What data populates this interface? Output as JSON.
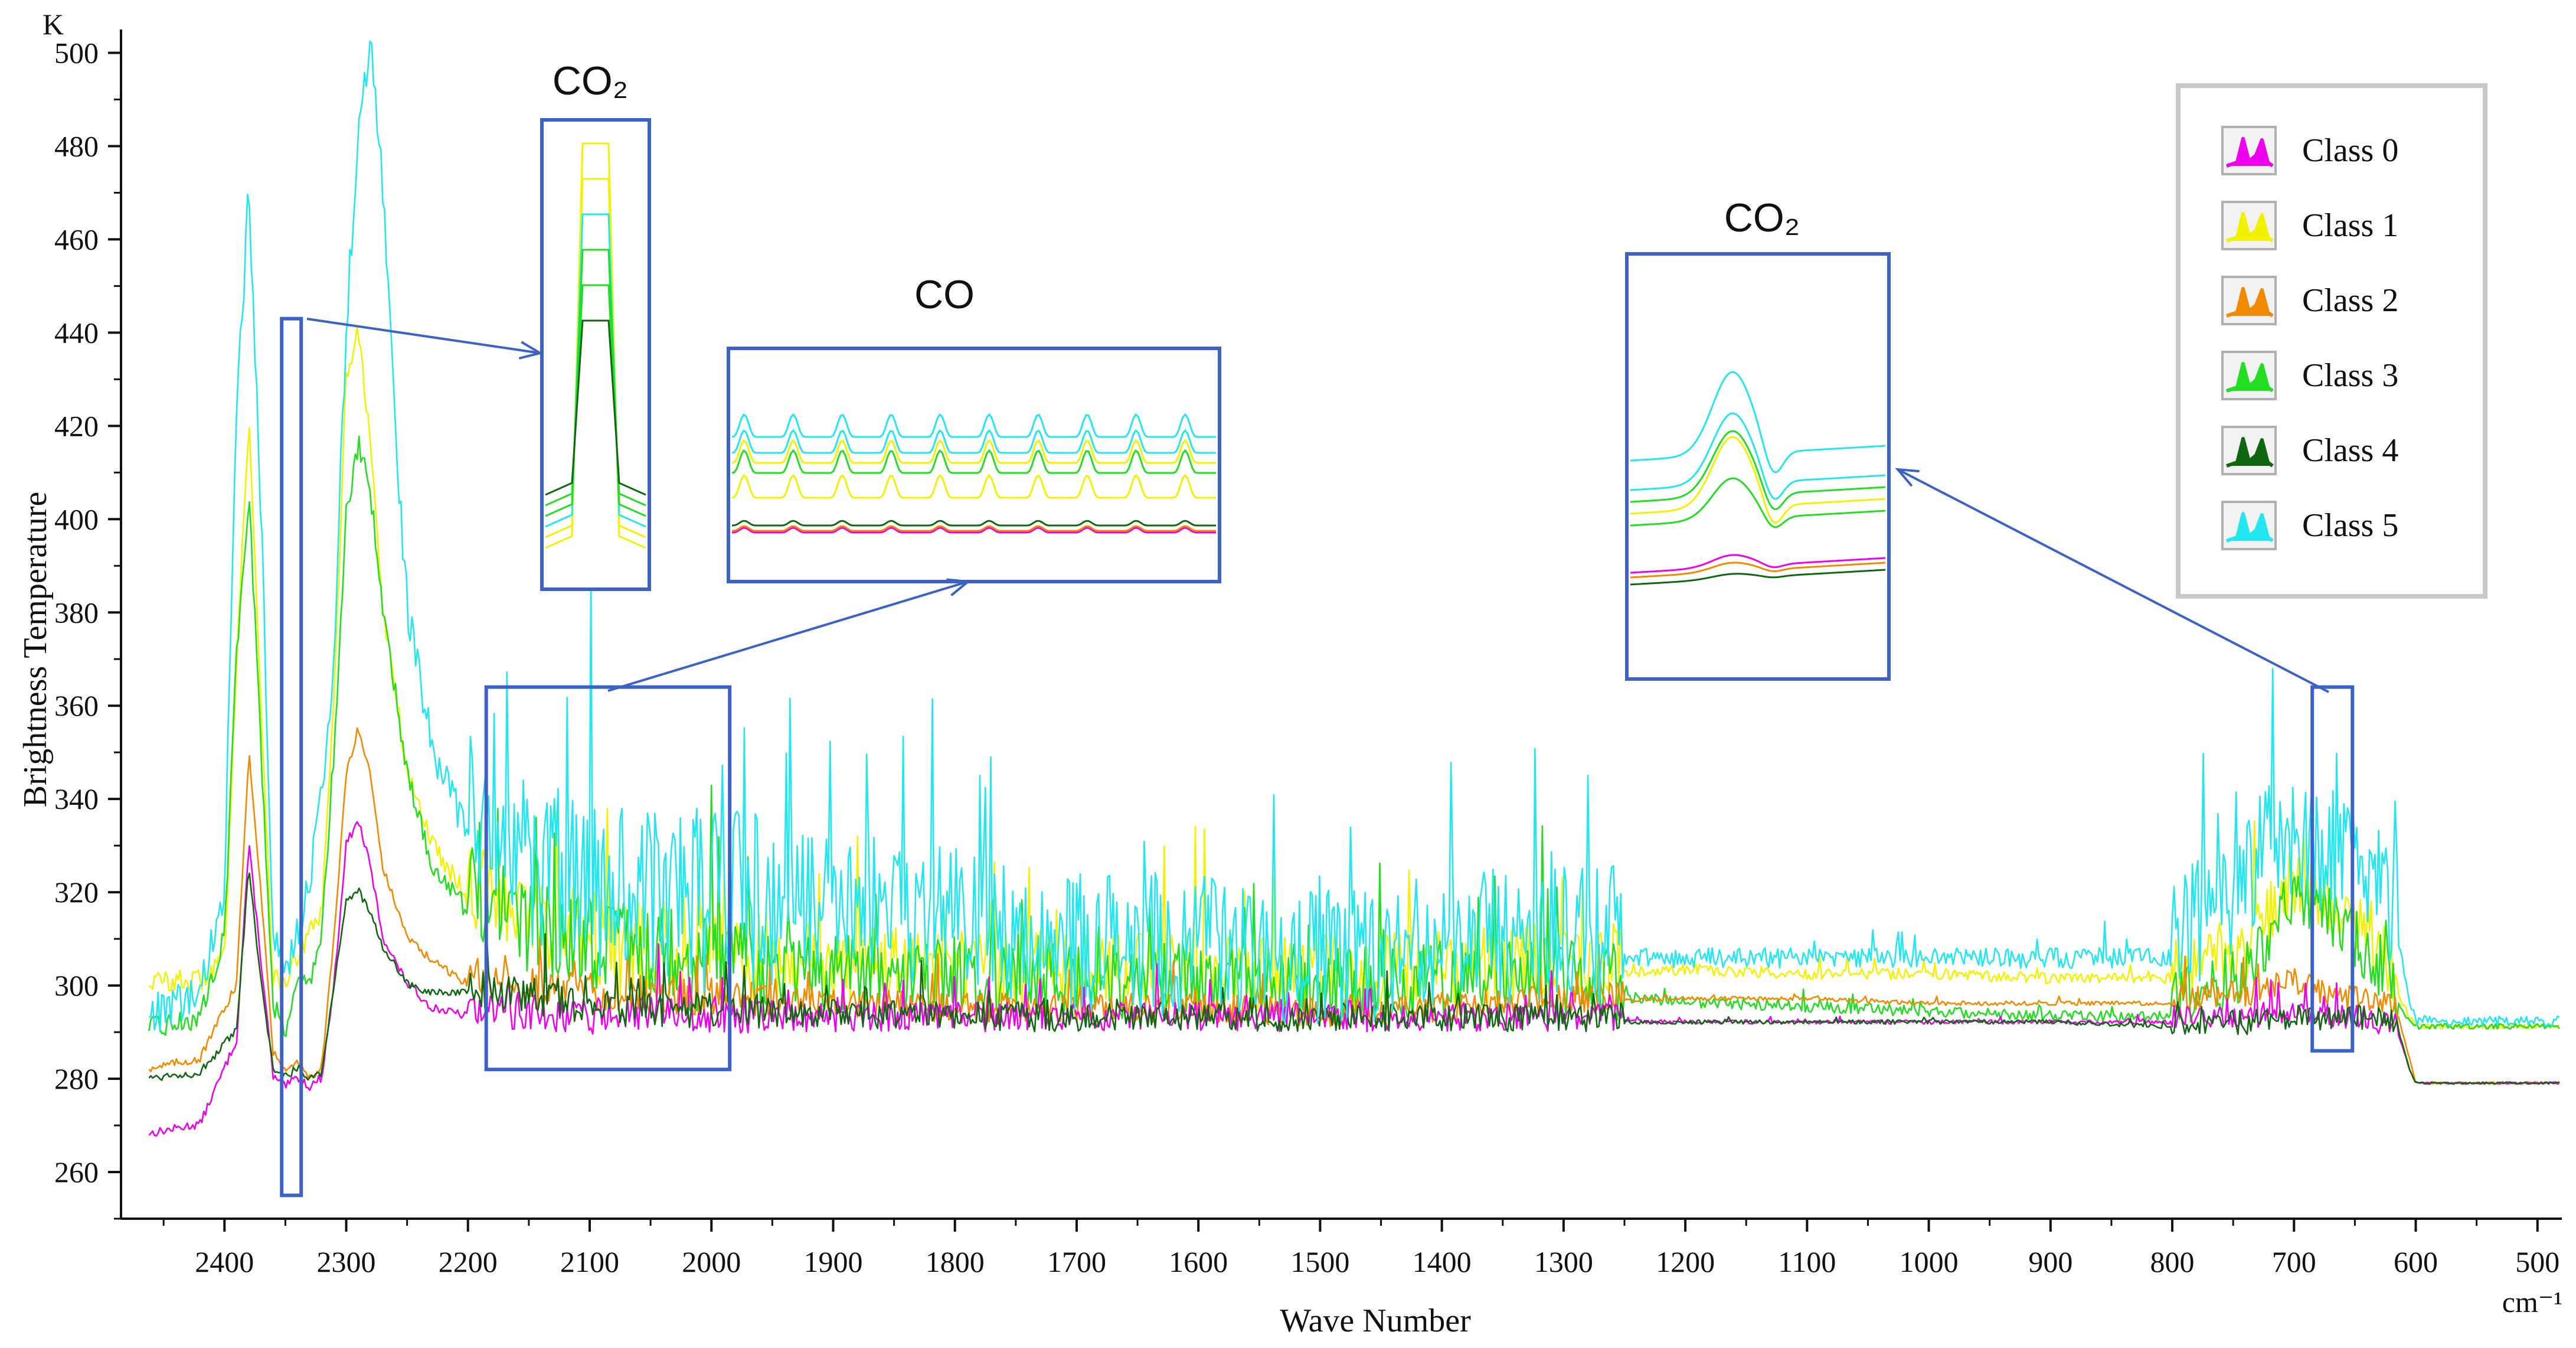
{
  "chart_data": {
    "type": "line",
    "title": "",
    "xlabel": "Wave Number",
    "ylabel": "Brightness Temperature",
    "x_unit": "cm⁻¹",
    "y_unit": "K",
    "xlim": [
      2485,
      480
    ],
    "ylim": [
      250,
      505
    ],
    "x_ticks": [
      2400,
      2300,
      2200,
      2100,
      2000,
      1900,
      1800,
      1700,
      1600,
      1500,
      1400,
      1300,
      1200,
      1100,
      1000,
      900,
      800,
      700,
      600,
      500
    ],
    "y_ticks": [
      260,
      280,
      300,
      320,
      340,
      360,
      380,
      400,
      420,
      440,
      460,
      480,
      500
    ],
    "legend_position": "top-right",
    "series": [
      {
        "name": "Class 0",
        "color": "#ee00ee",
        "x": [
          2460,
          2420,
          2390,
          2380,
          2370,
          2360,
          2350,
          2340,
          2330,
          2320,
          2310,
          2300,
          2290,
          2280,
          2270,
          2250,
          2230,
          2200,
          2150,
          2100,
          2000,
          1900,
          1800,
          1700,
          1600,
          1500,
          1400,
          1300,
          1200,
          1100,
          1000,
          900,
          800,
          740,
          700,
          670,
          640,
          615,
          605,
          600,
          560,
          500,
          482
        ],
        "y": [
          268,
          270,
          288,
          330,
          305,
          280,
          278,
          280,
          278,
          280,
          300,
          330,
          335,
          325,
          310,
          300,
          295,
          293,
          293,
          292,
          292,
          292,
          292,
          292,
          292,
          292,
          292,
          292,
          292,
          292,
          292,
          292,
          292,
          292,
          294,
          292,
          292,
          290,
          282,
          279,
          279,
          279,
          279
        ]
      },
      {
        "name": "Class 1",
        "color": "#f2f200",
        "x": [
          2460,
          2420,
          2400,
          2390,
          2380,
          2370,
          2360,
          2350,
          2340,
          2320,
          2310,
          2300,
          2290,
          2280,
          2270,
          2250,
          2230,
          2200,
          2150,
          2100,
          2000,
          1900,
          1800,
          1700,
          1600,
          1500,
          1400,
          1300,
          1200,
          1100,
          1000,
          900,
          800,
          740,
          700,
          670,
          640,
          615,
          605,
          600,
          560,
          500,
          482
        ],
        "y": [
          300,
          300,
          305,
          370,
          420,
          360,
          300,
          300,
          305,
          315,
          360,
          430,
          440,
          415,
          380,
          345,
          330,
          318,
          312,
          305,
          302,
          302,
          301,
          300,
          300,
          299,
          300,
          302,
          303,
          302,
          302,
          301,
          301,
          305,
          320,
          315,
          310,
          298,
          293,
          291,
          291,
          291,
          291
        ]
      },
      {
        "name": "Class 2",
        "color": "#f08a00",
        "x": [
          2460,
          2420,
          2390,
          2380,
          2370,
          2360,
          2350,
          2340,
          2330,
          2320,
          2310,
          2300,
          2290,
          2280,
          2270,
          2250,
          2230,
          2200,
          2150,
          2100,
          2000,
          1900,
          1800,
          1700,
          1600,
          1500,
          1400,
          1300,
          1200,
          1100,
          1000,
          900,
          800,
          740,
          700,
          670,
          640,
          615,
          605,
          600,
          560,
          500,
          482
        ],
        "y": [
          282,
          284,
          300,
          350,
          320,
          285,
          282,
          283,
          280,
          282,
          310,
          345,
          355,
          345,
          325,
          310,
          305,
          300,
          298,
          297,
          296,
          295,
          294,
          294,
          294,
          293,
          294,
          296,
          297,
          297,
          296,
          296,
          296,
          297,
          300,
          297,
          296,
          294,
          284,
          279,
          279,
          279,
          279
        ]
      },
      {
        "name": "Class 3",
        "color": "#22dd22",
        "x": [
          2460,
          2420,
          2400,
          2390,
          2380,
          2370,
          2360,
          2350,
          2340,
          2330,
          2320,
          2310,
          2300,
          2290,
          2280,
          2270,
          2250,
          2230,
          2200,
          2150,
          2100,
          2000,
          1900,
          1800,
          1700,
          1600,
          1500,
          1400,
          1300,
          1200,
          1100,
          1000,
          900,
          800,
          740,
          700,
          670,
          640,
          615,
          605,
          600,
          560,
          500,
          482
        ],
        "y": [
          290,
          292,
          310,
          370,
          405,
          350,
          295,
          290,
          300,
          300,
          310,
          350,
          400,
          415,
          405,
          380,
          345,
          325,
          315,
          308,
          304,
          300,
          299,
          299,
          298,
          298,
          297,
          298,
          298,
          296,
          295,
          294,
          293,
          293,
          300,
          318,
          312,
          305,
          296,
          292,
          291,
          291,
          291,
          291
        ]
      },
      {
        "name": "Class 4",
        "color": "#116611",
        "x": [
          2460,
          2420,
          2390,
          2380,
          2370,
          2360,
          2350,
          2340,
          2330,
          2320,
          2310,
          2300,
          2290,
          2280,
          2270,
          2250,
          2230,
          2200,
          2150,
          2100,
          2000,
          1900,
          1800,
          1700,
          1600,
          1500,
          1400,
          1300,
          1200,
          1100,
          1000,
          900,
          800,
          740,
          700,
          670,
          640,
          615,
          605,
          600,
          560,
          500,
          482
        ],
        "y": [
          280,
          281,
          290,
          325,
          300,
          282,
          280,
          282,
          280,
          281,
          300,
          318,
          320,
          315,
          308,
          300,
          298,
          298,
          296,
          294,
          293,
          293,
          292,
          292,
          292,
          292,
          292,
          292,
          292,
          292,
          292,
          292,
          291,
          291,
          292,
          292,
          292,
          291,
          282,
          279,
          279,
          279,
          279
        ]
      },
      {
        "name": "Class 5",
        "color": "#22e6f0",
        "x": [
          2460,
          2420,
          2400,
          2390,
          2380,
          2370,
          2360,
          2350,
          2340,
          2330,
          2320,
          2310,
          2300,
          2290,
          2280,
          2270,
          2260,
          2250,
          2230,
          2200,
          2150,
          2100,
          2000,
          1900,
          1800,
          1700,
          1600,
          1500,
          1400,
          1300,
          1200,
          1100,
          1000,
          900,
          800,
          740,
          720,
          700,
          670,
          640,
          615,
          605,
          600,
          560,
          500,
          482
        ],
        "y": [
          292,
          296,
          320,
          420,
          470,
          400,
          310,
          300,
          310,
          320,
          340,
          370,
          440,
          480,
          503,
          470,
          420,
          380,
          350,
          330,
          318,
          312,
          310,
          312,
          308,
          304,
          302,
          300,
          303,
          305,
          305,
          305,
          305,
          305,
          305,
          315,
          330,
          325,
          322,
          318,
          310,
          296,
          292,
          292,
          292,
          292
        ]
      }
    ],
    "annotations": [
      {
        "label": "CO₂",
        "highlight_x_range": [
          2353,
          2337
        ],
        "highlight_y_range": [
          255,
          443
        ]
      },
      {
        "label": "CO",
        "highlight_x_range": [
          2185,
          1985
        ],
        "highlight_y_range": [
          282,
          364
        ]
      },
      {
        "label": "CO₂",
        "highlight_x_range": [
          685,
          652
        ],
        "highlight_y_range": [
          286,
          364
        ]
      }
    ]
  }
}
